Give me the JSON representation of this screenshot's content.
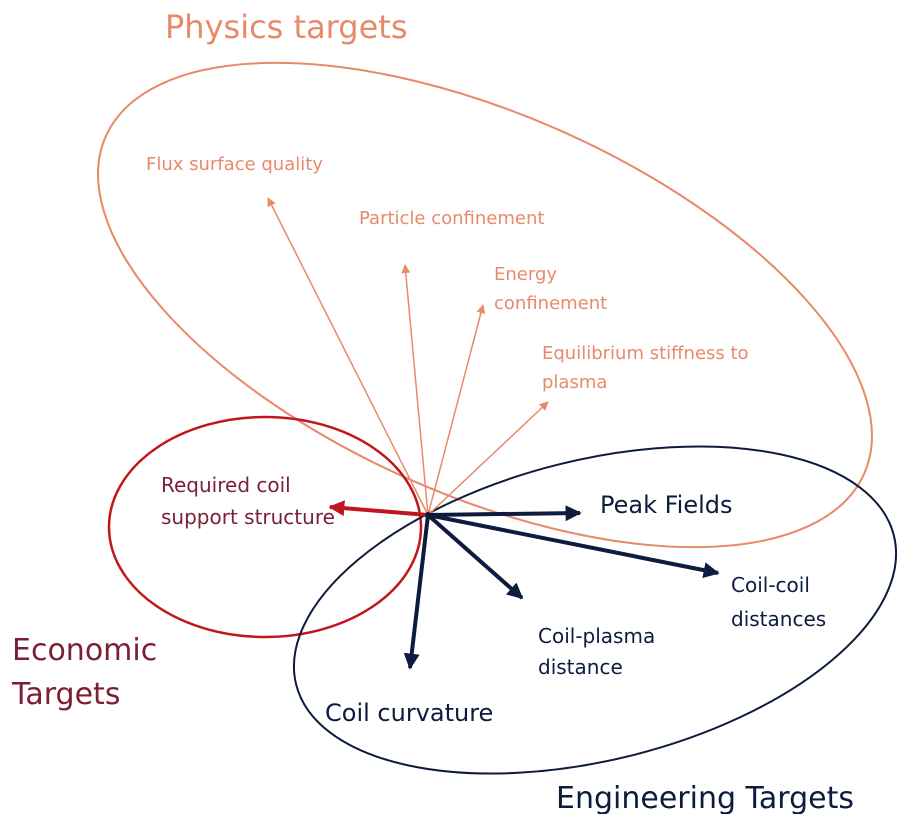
{
  "physics": {
    "title": "Physics targets",
    "items": [
      [
        "Flux surface quality"
      ],
      [
        "Particle confinement"
      ],
      [
        "Energy",
        "confinement"
      ],
      [
        "Equilibrium stiffness to",
        "plasma"
      ]
    ]
  },
  "economic": {
    "title": [
      "Economic",
      "Targets"
    ],
    "items": [
      [
        "Required coil",
        "support structure"
      ]
    ]
  },
  "engineering": {
    "title": "Engineering Targets",
    "items": [
      [
        "Peak Fields"
      ],
      [
        "Coil-coil",
        "distances"
      ],
      [
        "Coil-plasma",
        "distance"
      ],
      [
        "Coil curvature"
      ]
    ]
  }
}
